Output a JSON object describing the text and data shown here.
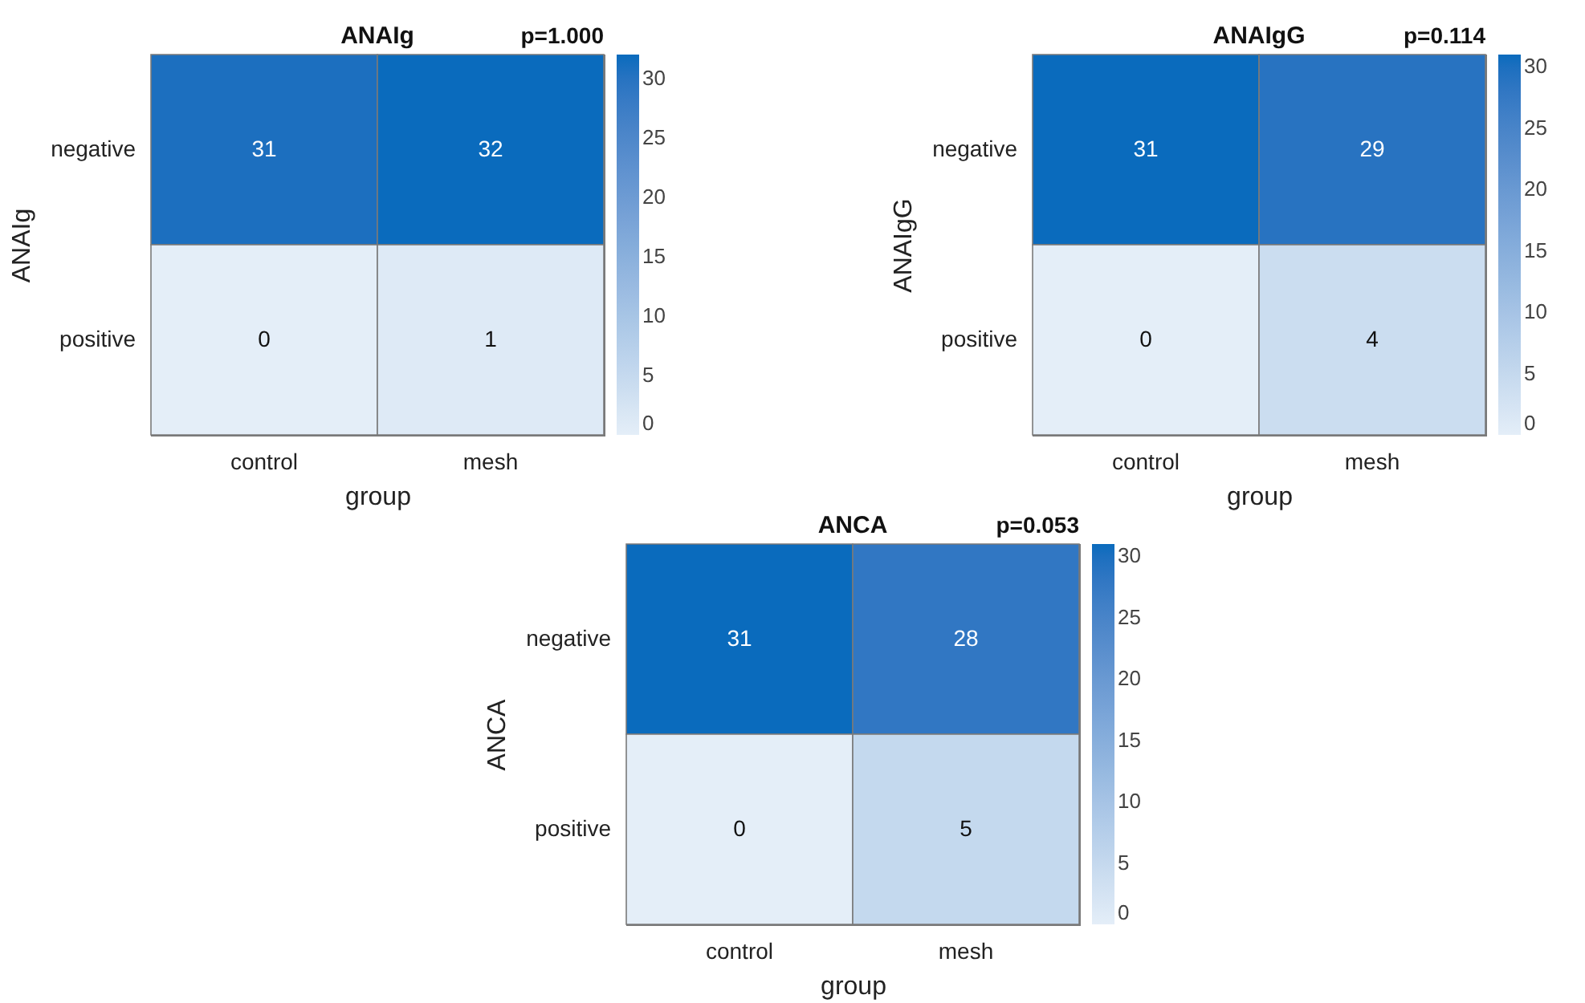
{
  "chart_data": [
    {
      "type": "heatmap",
      "title": "ANAIg",
      "annotations": [
        "p=1.000"
      ],
      "xlabel": "group",
      "ylabel": "ANAIg",
      "categories": [
        "control",
        "mesh"
      ],
      "y_categories": [
        "negative",
        "positive"
      ],
      "cells": [
        [
          31,
          32
        ],
        [
          0,
          1
        ]
      ],
      "clim": [
        0,
        32
      ],
      "cticks": [
        0,
        5,
        10,
        15,
        20,
        25,
        30
      ],
      "data_labels": true
    },
    {
      "type": "heatmap",
      "title": "ANAIgG",
      "annotations": [
        "p=0.114"
      ],
      "xlabel": "group",
      "ylabel": "ANAIgG",
      "categories": [
        "control",
        "mesh"
      ],
      "y_categories": [
        "negative",
        "positive"
      ],
      "cells": [
        [
          31,
          29
        ],
        [
          0,
          4
        ]
      ],
      "clim": [
        0,
        31
      ],
      "cticks": [
        0,
        5,
        10,
        15,
        20,
        25,
        30
      ],
      "data_labels": true
    },
    {
      "type": "heatmap",
      "title": "ANCA",
      "annotations": [
        "p=0.053"
      ],
      "xlabel": "group",
      "ylabel": "ANCA",
      "categories": [
        "control",
        "mesh"
      ],
      "y_categories": [
        "negative",
        "positive"
      ],
      "cells": [
        [
          31,
          28
        ],
        [
          0,
          5
        ]
      ],
      "clim": [
        0,
        31
      ],
      "cticks": [
        0,
        5,
        10,
        15,
        20,
        25,
        30
      ],
      "data_labels": true
    }
  ]
}
